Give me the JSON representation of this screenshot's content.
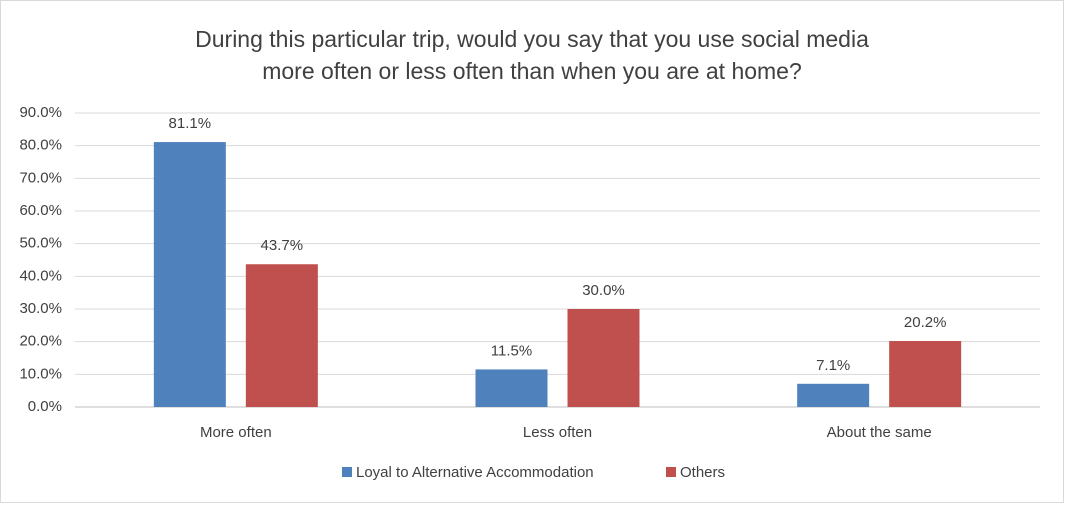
{
  "chart_data": {
    "type": "bar",
    "title": [
      "During this particular trip, would you say that you use social media",
      "more often or less often than when you are at home?"
    ],
    "categories": [
      "More often",
      "Less often",
      "About the same"
    ],
    "series": [
      {
        "name": "Loyal to Alternative Accommodation",
        "color": "#4f81bd",
        "values": [
          81.1,
          11.5,
          7.1
        ],
        "value_labels": [
          "81.1%",
          "11.5%",
          "7.1%"
        ]
      },
      {
        "name": "Others",
        "color": "#c0504d",
        "values": [
          43.7,
          30.0,
          20.2
        ],
        "value_labels": [
          "43.7%",
          "30.0%",
          "20.2%"
        ]
      }
    ],
    "ylim": [
      0,
      90
    ],
    "yticks": [
      {
        "value": 0,
        "label": "0.0%"
      },
      {
        "value": 10,
        "label": "10.0%"
      },
      {
        "value": 20,
        "label": "20.0%"
      },
      {
        "value": 30,
        "label": "30.0%"
      },
      {
        "value": 40,
        "label": "40.0%"
      },
      {
        "value": 50,
        "label": "50.0%"
      },
      {
        "value": 60,
        "label": "60.0%"
      },
      {
        "value": 70,
        "label": "70.0%"
      },
      {
        "value": 80,
        "label": "80.0%"
      },
      {
        "value": 90,
        "label": "90.0%"
      }
    ],
    "grid": true,
    "legend": "bottom"
  }
}
